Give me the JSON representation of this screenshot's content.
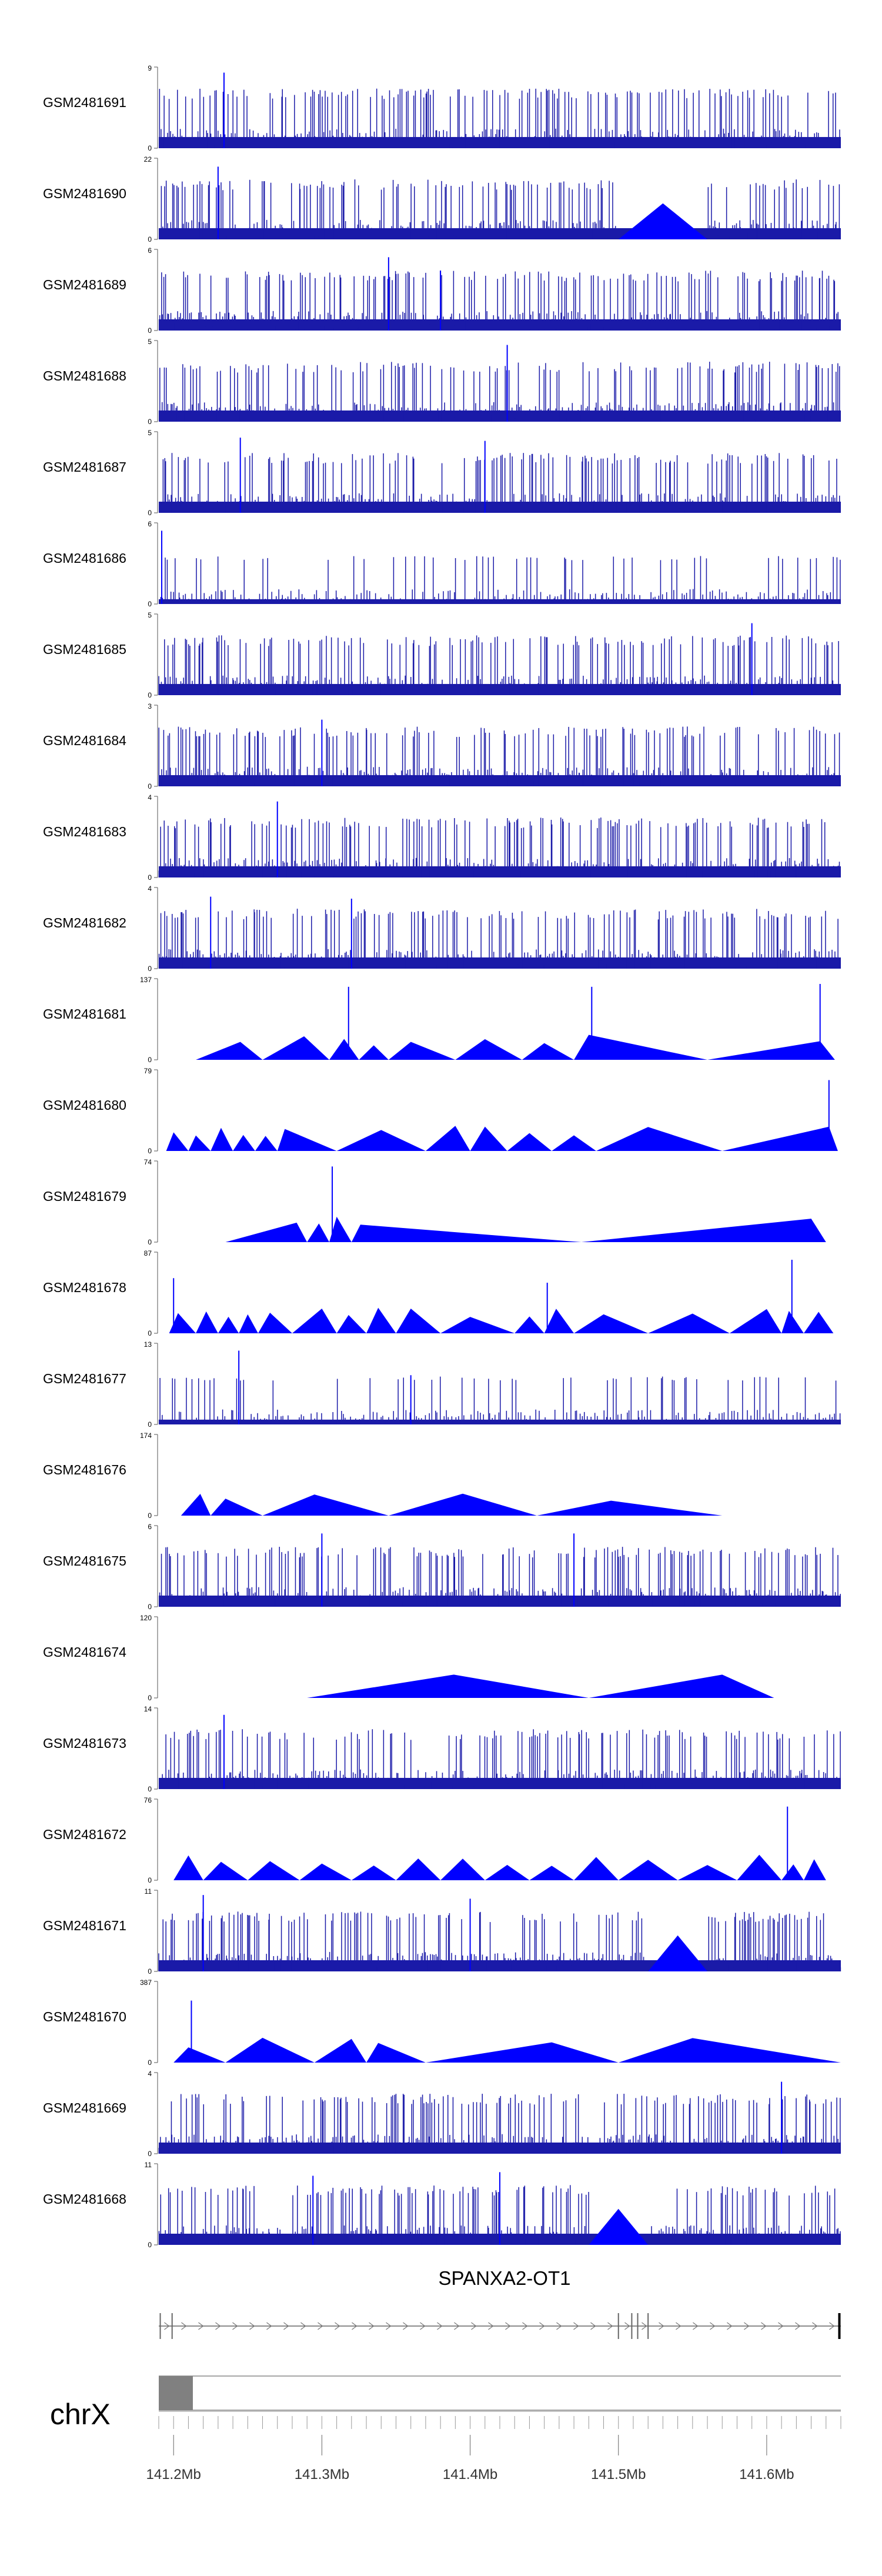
{
  "chart_data": {
    "type": "area",
    "chromosome": "chrX",
    "gene_label": "SPANXA2-OT1",
    "genomic_axis": {
      "unit": "Mb",
      "range": [
        141.19,
        141.65
      ],
      "ticks": [
        141.2,
        141.3,
        141.4,
        141.5,
        141.6
      ],
      "tick_labels": [
        "141.2Mb",
        "141.3Mb",
        "141.4Mb",
        "141.5Mb",
        "141.6Mb"
      ]
    },
    "gene_model": {
      "start": 141.19,
      "end": 141.65,
      "exons": [
        141.191,
        141.199,
        141.5,
        141.509,
        141.513,
        141.52,
        141.649
      ]
    },
    "ideogram_highlight": [
      141.19,
      141.213
    ],
    "colors": {
      "signal": "#0000ff",
      "axis": "#555555",
      "ideogram": "#808080"
    },
    "tracks": [
      {
        "name": "GSM2481691",
        "ymax": 9,
        "style": "dense",
        "peaks": [
          [
            141.234,
            8.5
          ]
        ]
      },
      {
        "name": "GSM2481690",
        "ymax": 22,
        "style": "coarse",
        "peaks": [
          [
            141.23,
            20
          ]
        ],
        "gaps": [
          [
            141.5,
            141.56
          ]
        ]
      },
      {
        "name": "GSM2481689",
        "ymax": 6,
        "style": "dense",
        "peaks": [
          [
            141.345,
            5.5
          ],
          [
            141.38,
            4.5
          ]
        ]
      },
      {
        "name": "GSM2481688",
        "ymax": 5,
        "style": "dense",
        "peaks": [
          [
            141.425,
            4.8
          ]
        ]
      },
      {
        "name": "GSM2481687",
        "ymax": 5,
        "style": "dense",
        "peaks": [
          [
            141.245,
            4.7
          ],
          [
            141.41,
            4.5
          ]
        ]
      },
      {
        "name": "GSM2481686",
        "ymax": 6,
        "style": "sparse",
        "peaks": [
          [
            141.192,
            5.5
          ]
        ]
      },
      {
        "name": "GSM2481685",
        "ymax": 5,
        "style": "dense",
        "peaks": [
          [
            141.59,
            4.5
          ]
        ]
      },
      {
        "name": "GSM2481684",
        "ymax": 3,
        "style": "dense",
        "peaks": [
          [
            141.3,
            2.5
          ]
        ]
      },
      {
        "name": "GSM2481683",
        "ymax": 4,
        "style": "dense",
        "peaks": [
          [
            141.27,
            3.8
          ]
        ]
      },
      {
        "name": "GSM2481682",
        "ymax": 4,
        "style": "dense",
        "peaks": [
          [
            141.225,
            3.6
          ],
          [
            141.32,
            3.5
          ]
        ]
      },
      {
        "name": "GSM2481681",
        "ymax": 137,
        "style": "tri",
        "tri": [
          [
            141.215,
            141.245,
            141.26
          ],
          [
            141.26,
            141.288,
            141.305
          ],
          [
            141.305,
            141.315,
            141.325
          ],
          [
            141.325,
            141.335,
            141.345
          ],
          [
            141.345,
            141.36,
            141.39
          ],
          [
            141.39,
            141.41,
            141.435
          ],
          [
            141.435,
            141.45,
            141.47
          ],
          [
            141.47,
            141.48,
            141.56
          ],
          [
            141.56,
            141.636,
            141.646
          ]
        ],
        "peaks": [
          [
            141.318,
            125
          ],
          [
            141.482,
            125
          ],
          [
            141.636,
            130
          ]
        ]
      },
      {
        "name": "GSM2481680",
        "ymax": 79,
        "style": "tri",
        "tri": [
          [
            141.195,
            141.2,
            141.21
          ],
          [
            141.21,
            141.215,
            141.225
          ],
          [
            141.225,
            141.232,
            141.24
          ],
          [
            141.24,
            141.247,
            141.255
          ],
          [
            141.255,
            141.262,
            141.27
          ],
          [
            141.27,
            141.275,
            141.31
          ],
          [
            141.31,
            141.34,
            141.37
          ],
          [
            141.37,
            141.39,
            141.4
          ],
          [
            141.4,
            141.41,
            141.425
          ],
          [
            141.425,
            141.44,
            141.455
          ],
          [
            141.455,
            141.47,
            141.485
          ],
          [
            141.485,
            141.52,
            141.57
          ],
          [
            141.57,
            141.642,
            141.648
          ]
        ],
        "peaks": [
          [
            141.642,
            70
          ]
        ]
      },
      {
        "name": "GSM2481679",
        "ymax": 74,
        "style": "tri",
        "tri": [
          [
            141.235,
            141.283,
            141.29
          ],
          [
            141.29,
            141.298,
            141.305
          ],
          [
            141.305,
            141.31,
            141.32
          ],
          [
            141.32,
            141.326,
            141.475
          ],
          [
            141.475,
            141.63,
            141.64
          ]
        ],
        "peaks": [
          [
            141.307,
            70
          ]
        ]
      },
      {
        "name": "GSM2481678",
        "ymax": 87,
        "style": "tri",
        "tri": [
          [
            141.197,
            141.203,
            141.215
          ],
          [
            141.215,
            141.222,
            141.23
          ],
          [
            141.23,
            141.237,
            141.244
          ],
          [
            141.244,
            141.25,
            141.257
          ],
          [
            141.257,
            141.265,
            141.28
          ],
          [
            141.28,
            141.3,
            141.31
          ],
          [
            141.31,
            141.318,
            141.33
          ],
          [
            141.33,
            141.338,
            141.35
          ],
          [
            141.35,
            141.36,
            141.38
          ],
          [
            141.38,
            141.4,
            141.43
          ],
          [
            141.43,
            141.44,
            141.45
          ],
          [
            141.45,
            141.458,
            141.47
          ],
          [
            141.47,
            141.49,
            141.52
          ],
          [
            141.52,
            141.55,
            141.575
          ],
          [
            141.575,
            141.6,
            141.61
          ],
          [
            141.61,
            141.615,
            141.625
          ],
          [
            141.625,
            141.635,
            141.645
          ]
        ],
        "peaks": [
          [
            141.2,
            60
          ],
          [
            141.452,
            55
          ],
          [
            141.617,
            80
          ]
        ]
      },
      {
        "name": "GSM2481677",
        "ymax": 13,
        "style": "sparse",
        "peaks": [
          [
            141.244,
            12
          ],
          [
            141.36,
            8
          ]
        ]
      },
      {
        "name": "GSM2481676",
        "ymax": 174,
        "style": "tri",
        "tri": [
          [
            141.205,
            141.218,
            141.225
          ],
          [
            141.225,
            141.235,
            141.26
          ],
          [
            141.26,
            141.295,
            141.345
          ],
          [
            141.345,
            141.395,
            141.445
          ],
          [
            141.445,
            141.495,
            141.57
          ]
        ],
        "peaks": []
      },
      {
        "name": "GSM2481675",
        "ymax": 6,
        "style": "dense",
        "peaks": [
          [
            141.3,
            5.5
          ],
          [
            141.47,
            5.5
          ]
        ]
      },
      {
        "name": "GSM2481674",
        "ymax": 120,
        "style": "tri",
        "tri": [
          [
            141.29,
            141.389,
            141.48
          ],
          [
            141.48,
            141.57,
            141.605
          ]
        ],
        "peaks": []
      },
      {
        "name": "GSM2481673",
        "ymax": 14,
        "style": "dense",
        "peaks": [
          [
            141.234,
            13
          ]
        ]
      },
      {
        "name": "GSM2481672",
        "ymax": 76,
        "style": "tri",
        "tri": [
          [
            141.2,
            141.21,
            141.22
          ],
          [
            141.22,
            141.232,
            141.25
          ],
          [
            141.25,
            141.265,
            141.285
          ],
          [
            141.285,
            141.3,
            141.32
          ],
          [
            141.32,
            141.335,
            141.35
          ],
          [
            141.35,
            141.365,
            141.38
          ],
          [
            141.38,
            141.395,
            141.41
          ],
          [
            141.41,
            141.425,
            141.44
          ],
          [
            141.44,
            141.455,
            141.47
          ],
          [
            141.47,
            141.485,
            141.5
          ],
          [
            141.5,
            141.52,
            141.54
          ],
          [
            141.54,
            141.56,
            141.58
          ],
          [
            141.58,
            141.595,
            141.61
          ],
          [
            141.61,
            141.618,
            141.625
          ],
          [
            141.625,
            141.632,
            141.64
          ]
        ],
        "peaks": [
          [
            141.614,
            70
          ]
        ]
      },
      {
        "name": "GSM2481671",
        "ymax": 11,
        "style": "dense",
        "peaks": [
          [
            141.22,
            10.5
          ],
          [
            141.4,
            10
          ]
        ],
        "gaps": [
          [
            141.52,
            141.56
          ]
        ]
      },
      {
        "name": "GSM2481670",
        "ymax": 387,
        "style": "tri",
        "tri": [
          [
            141.2,
            141.21,
            141.235
          ],
          [
            141.235,
            141.26,
            141.295
          ],
          [
            141.295,
            141.32,
            141.33
          ],
          [
            141.33,
            141.338,
            141.37
          ],
          [
            141.37,
            141.455,
            141.5
          ],
          [
            141.5,
            141.55,
            141.65
          ]
        ],
        "peaks": [
          [
            141.212,
            300
          ]
        ]
      },
      {
        "name": "GSM2481669",
        "ymax": 4,
        "style": "dense",
        "peaks": [
          [
            141.61,
            3.6
          ]
        ]
      },
      {
        "name": "GSM2481668",
        "ymax": 11,
        "style": "dense",
        "peaks": [
          [
            141.294,
            9.5
          ],
          [
            141.42,
            10
          ]
        ],
        "gaps": [
          [
            141.48,
            141.52
          ]
        ]
      }
    ]
  }
}
